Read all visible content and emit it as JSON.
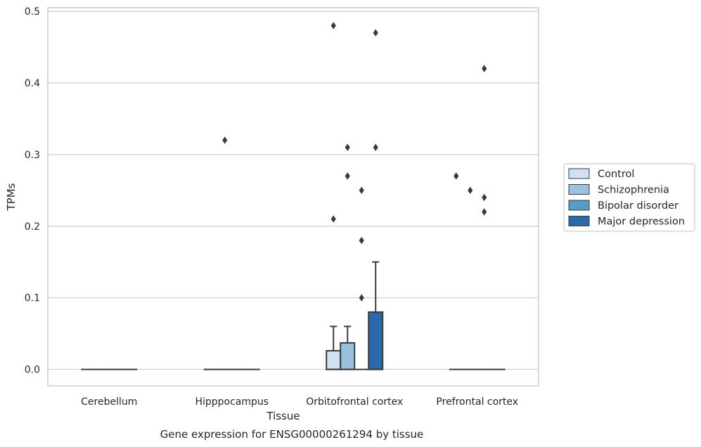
{
  "chart_data": {
    "type": "box",
    "title": "",
    "caption": "Gene expression for ENSG00000261294 by tissue",
    "xlabel": "Tissue",
    "ylabel": "TPMs",
    "ylim": [
      -0.023,
      0.505
    ],
    "yticks": [
      "0.0",
      "0.1",
      "0.2",
      "0.3",
      "0.4",
      "0.5"
    ],
    "ytick_values": [
      0.0,
      0.1,
      0.2,
      0.3,
      0.4,
      0.5
    ],
    "grid": "horizontal",
    "legend_position": "right",
    "categories": [
      "Cerebellum",
      "Hipppocampus",
      "Orbitofrontal cortex",
      "Prefrontal cortex"
    ],
    "series": [
      {
        "name": "Control",
        "color": "#d0e1f2",
        "boxes": [
          {
            "q1": 0,
            "median": 0,
            "q3": 0,
            "whisker_low": 0,
            "whisker_high": 0,
            "outliers": []
          },
          {
            "q1": 0,
            "median": 0,
            "q3": 0,
            "whisker_low": 0,
            "whisker_high": 0,
            "outliers": []
          },
          {
            "q1": 0,
            "median": 0,
            "q3": 0.026,
            "whisker_low": 0,
            "whisker_high": 0.06,
            "outliers": [
              0.21,
              0.48
            ]
          },
          {
            "q1": 0,
            "median": 0,
            "q3": 0,
            "whisker_low": 0,
            "whisker_high": 0,
            "outliers": [
              0.27
            ]
          }
        ]
      },
      {
        "name": "Schizophrenia",
        "color": "#9ac1dd",
        "boxes": [
          {
            "q1": 0,
            "median": 0,
            "q3": 0,
            "whisker_low": 0,
            "whisker_high": 0,
            "outliers": []
          },
          {
            "q1": 0,
            "median": 0,
            "q3": 0,
            "whisker_low": 0,
            "whisker_high": 0,
            "outliers": [
              0.32
            ]
          },
          {
            "q1": 0,
            "median": 0,
            "q3": 0.037,
            "whisker_low": 0,
            "whisker_high": 0.06,
            "outliers": [
              0.27,
              0.31
            ]
          },
          {
            "q1": 0,
            "median": 0,
            "q3": 0,
            "whisker_low": 0,
            "whisker_high": 0,
            "outliers": [
              0.25
            ]
          }
        ]
      },
      {
        "name": "Bipolar disorder",
        "color": "#5a9bc9",
        "boxes": [
          {
            "q1": 0,
            "median": 0,
            "q3": 0,
            "whisker_low": 0,
            "whisker_high": 0,
            "outliers": []
          },
          {
            "q1": 0,
            "median": 0,
            "q3": 0,
            "whisker_low": 0,
            "whisker_high": 0,
            "outliers": []
          },
          {
            "q1": 0,
            "median": 0,
            "q3": 0,
            "whisker_low": 0,
            "whisker_high": 0,
            "outliers": [
              0.1,
              0.18,
              0.25
            ]
          },
          {
            "q1": 0,
            "median": 0,
            "q3": 0,
            "whisker_low": 0,
            "whisker_high": 0,
            "outliers": [
              0.22,
              0.24,
              0.42
            ]
          }
        ]
      },
      {
        "name": "Major depression",
        "color": "#2b6aa9",
        "boxes": [
          {
            "q1": 0,
            "median": 0,
            "q3": 0,
            "whisker_low": 0,
            "whisker_high": 0,
            "outliers": []
          },
          {
            "q1": 0,
            "median": 0,
            "q3": 0,
            "whisker_low": 0,
            "whisker_high": 0,
            "outliers": []
          },
          {
            "q1": 0,
            "median": 0,
            "q3": 0.08,
            "whisker_low": 0,
            "whisker_high": 0.15,
            "outliers": [
              0.31,
              0.47
            ]
          },
          {
            "q1": 0,
            "median": 0,
            "q3": 0,
            "whisker_low": 0,
            "whisker_high": 0,
            "outliers": []
          }
        ]
      }
    ],
    "colors": {
      "grid": "#cccccc",
      "frame": "#cccccc",
      "line": "#3a3a3a",
      "text": "#262626"
    }
  }
}
